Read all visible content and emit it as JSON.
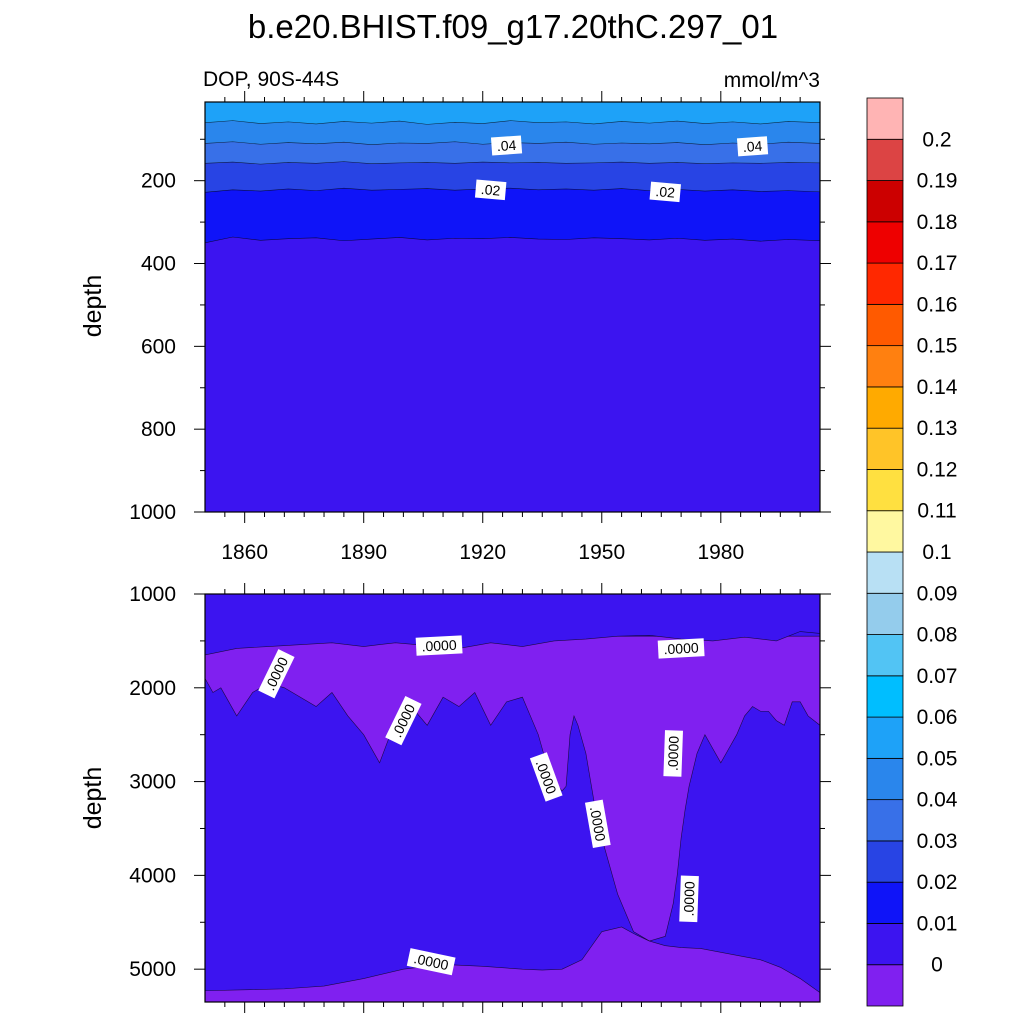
{
  "title": "b.e20.BHIST.f09_g17.20thC.297_01",
  "colorbar": {
    "levels": [
      "0",
      "0.01",
      "0.02",
      "0.03",
      "0.04",
      "0.05",
      "0.06",
      "0.07",
      "0.08",
      "0.09",
      "0.1",
      "0.11",
      "0.12",
      "0.13",
      "0.14",
      "0.15",
      "0.16",
      "0.17",
      "0.18",
      "0.19",
      "0.2"
    ],
    "colors": [
      "#8020f0",
      "#3c14f0",
      "#0f14f8",
      "#2844e4",
      "#3870e8",
      "#2a86ec",
      "#1ea2f8",
      "#00beff",
      "#52c4f4",
      "#94ccec",
      "#b8e0f4",
      "#fff8a0",
      "#ffe040",
      "#ffc428",
      "#ffaa00",
      "#ff8010",
      "#ff5a00",
      "#ff2800",
      "#ee0000",
      "#cc0000",
      "#dc4444",
      "#ffb4b4"
    ]
  },
  "chart_data": [
    {
      "type": "heatmap",
      "subtitle_left": "DOP, 90S-44S",
      "subtitle_right": "mmol/m^3",
      "ylabel": "depth",
      "xlim": [
        1850,
        2005
      ],
      "ylim": [
        1000,
        10
      ],
      "xticks": [
        "1860",
        "1890",
        "1920",
        "1950",
        "1980"
      ],
      "yticks": [
        "200",
        "400",
        "600",
        "800",
        "1000"
      ],
      "ytick_values": [
        200,
        400,
        600,
        800,
        1000
      ],
      "contour_labels": [
        ".04",
        ".04",
        ".02",
        ".02"
      ],
      "contour_label_pos": [
        [
          1926,
          115
        ],
        [
          1988,
          117
        ],
        [
          1922,
          222
        ],
        [
          1966,
          227
        ]
      ],
      "contour_label_rot": [
        -4,
        -4,
        5,
        5
      ],
      "x": [
        1850,
        1857,
        1864,
        1871,
        1878,
        1885,
        1892,
        1899,
        1906,
        1913,
        1920,
        1927,
        1934,
        1941,
        1948,
        1955,
        1962,
        1969,
        1976,
        1983,
        1990,
        1997,
        2005
      ],
      "bands": [
        {
          "fill": "#1ea2f8",
          "boundary": [
            60,
            55,
            62,
            58,
            63,
            57,
            61,
            56,
            64,
            59,
            62,
            55,
            60,
            58,
            63,
            57,
            61,
            56,
            62,
            58,
            63,
            57,
            60
          ]
        },
        {
          "fill": "#2a86ec",
          "boundary": [
            110,
            106,
            112,
            108,
            111,
            107,
            113,
            109,
            110,
            106,
            112,
            108,
            110,
            107,
            112,
            109,
            111,
            108,
            113,
            109,
            112,
            107,
            110
          ]
        },
        {
          "fill": "#3870e8",
          "boundary": [
            158,
            155,
            160,
            156,
            158,
            154,
            159,
            157,
            156,
            158,
            155,
            157,
            156,
            158,
            157,
            155,
            158,
            156,
            159,
            157,
            158,
            156,
            157
          ]
        },
        {
          "fill": "#2844e4",
          "boundary": [
            228,
            222,
            225,
            220,
            224,
            218,
            223,
            221,
            219,
            223,
            220,
            218,
            222,
            220,
            223,
            219,
            224,
            221,
            225,
            222,
            226,
            224,
            227
          ]
        },
        {
          "fill": "#0f14f8",
          "boundary": [
            350,
            336,
            344,
            340,
            338,
            345,
            341,
            337,
            343,
            339,
            340,
            337,
            341,
            342,
            338,
            340,
            343,
            339,
            344,
            341,
            346,
            342,
            345
          ]
        }
      ],
      "base_fill": "#3c14f0"
    },
    {
      "type": "heatmap",
      "ylabel": "depth",
      "xlim": [
        1850,
        2005
      ],
      "ylim": [
        5350,
        1000
      ],
      "xticks": [],
      "yticks": [
        "1000",
        "2000",
        "3000",
        "4000",
        "5000"
      ],
      "ytick_values": [
        1000,
        2000,
        3000,
        4000,
        5000
      ],
      "contour_labels": [
        ".0000",
        ".0000",
        ".0000",
        ".0000",
        ".0000",
        ".0000",
        ".0000",
        ".0000",
        ".0000"
      ],
      "contour_label_pos": [
        [
          1868,
          1850
        ],
        [
          1900,
          2350
        ],
        [
          1909,
          1550
        ],
        [
          1936,
          2950
        ],
        [
          1949,
          3450
        ],
        [
          1970,
          1580
        ],
        [
          1968,
          2700
        ],
        [
          1972,
          4250
        ],
        [
          1907,
          4920
        ]
      ],
      "contour_label_rot": [
        -64,
        -64,
        -3,
        70,
        80,
        -3,
        -88,
        -88,
        12
      ],
      "base_fill": "#3c14f0",
      "regions": [
        {
          "fill": "#8020f0",
          "x": [
            1850,
            1852,
            1854,
            1858,
            1862,
            1866,
            1870,
            1874,
            1878,
            1882,
            1886,
            1890,
            1894,
            1898,
            1902,
            1906,
            1910,
            1914,
            1918,
            1922,
            1926,
            1930,
            1934,
            1936,
            1938,
            1940,
            1941,
            1942,
            1943,
            1944,
            1946,
            1948,
            1950,
            1952,
            1954,
            1956,
            1958,
            1962,
            1966,
            1968,
            1969,
            1970,
            1971,
            1972,
            1974,
            1976,
            1978,
            1980,
            1982,
            1984,
            1986,
            1988,
            1990,
            1992,
            1994,
            1996,
            1998,
            2000,
            2002,
            2005,
            2005,
            1850
          ],
          "y": [
            1900,
            2050,
            2000,
            2300,
            2050,
            1950,
            2000,
            2100,
            2200,
            2050,
            2300,
            2500,
            2800,
            2350,
            2200,
            2400,
            2100,
            2200,
            2050,
            2400,
            2150,
            2100,
            2500,
            2800,
            3000,
            3100,
            3050,
            2500,
            2300,
            2400,
            2700,
            3200,
            3600,
            3900,
            4200,
            4400,
            4600,
            4700,
            4650,
            4300,
            4000,
            3600,
            3300,
            3050,
            2700,
            2500,
            2650,
            2800,
            2650,
            2500,
            2300,
            2200,
            2250,
            2250,
            2350,
            2400,
            2150,
            2150,
            2300,
            2400,
            1450,
            1450
          ]
        },
        {
          "fill": "#8020f0",
          "x": [
            1850,
            1860,
            1870,
            1880,
            1890,
            1900,
            1910,
            1920,
            1930,
            1935,
            1940,
            1945,
            1950,
            1955,
            1958,
            1962,
            1966,
            1970,
            1975,
            1980,
            1985,
            1990,
            1995,
            2000,
            2005,
            2005,
            1850
          ],
          "y": [
            5230,
            5220,
            5210,
            5180,
            5100,
            5000,
            4950,
            4970,
            5000,
            5010,
            5000,
            4900,
            4600,
            4550,
            4620,
            4700,
            4750,
            4770,
            4780,
            4820,
            4860,
            4900,
            4980,
            5100,
            5250,
            5350,
            5350
          ]
        },
        {
          "fill": "#3c14f0",
          "x": [
            1850,
            1858,
            1866,
            1874,
            1882,
            1890,
            1898,
            1906,
            1914,
            1922,
            1930,
            1938,
            1946,
            1954,
            1962,
            1970,
            1978,
            1986,
            1994,
            2000,
            2005,
            2005,
            1850
          ],
          "y": [
            1650,
            1580,
            1560,
            1540,
            1520,
            1560,
            1520,
            1550,
            1580,
            1520,
            1560,
            1500,
            1480,
            1450,
            1440,
            1480,
            1500,
            1460,
            1500,
            1400,
            1420,
            1000,
            1000
          ]
        }
      ]
    }
  ]
}
